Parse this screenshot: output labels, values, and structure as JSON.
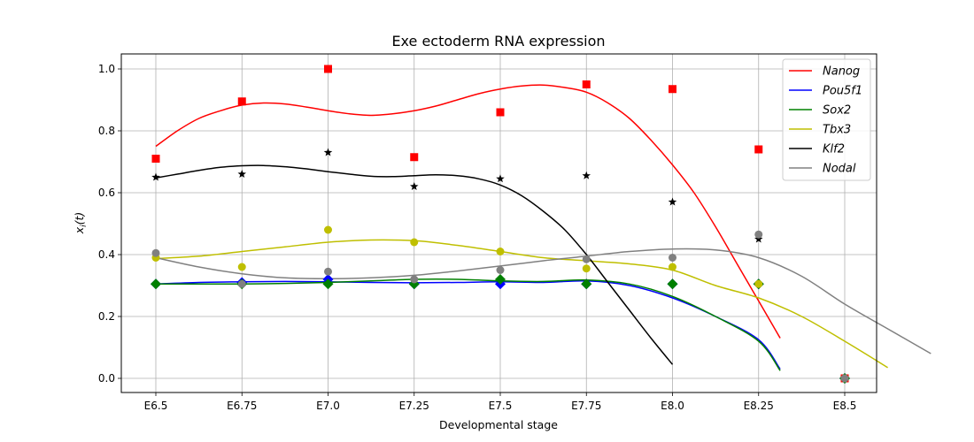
{
  "chart_data": {
    "type": "line",
    "title": "Exe ectoderm RNA expression",
    "xlabel": "Developmental stage",
    "ylabel_main": "x",
    "ylabel_sub": "i",
    "ylabel_tail": "(t)",
    "categories": [
      "E6.5",
      "E6.75",
      "E7.0",
      "E7.25",
      "E7.5",
      "E7.75",
      "E8.0",
      "E8.25",
      "E8.5"
    ],
    "yticks": [
      "0.0",
      "0.2",
      "0.4",
      "0.6",
      "0.8",
      "1.0"
    ],
    "ylim": [
      -0.05,
      1.05
    ],
    "grid": true,
    "legend_position": "top-right",
    "series": [
      {
        "name": "Nanog",
        "color": "#ff0000",
        "marker": "square",
        "points": [
          0.71,
          0.895,
          1.0,
          0.715,
          0.86,
          0.95,
          0.935,
          0.74,
          0.0
        ],
        "fit": [
          [
            0,
            0.75
          ],
          [
            0.25,
            0.8
          ],
          [
            0.5,
            0.84
          ],
          [
            0.75,
            0.865
          ],
          [
            1,
            0.883
          ],
          [
            1.25,
            0.89
          ],
          [
            1.5,
            0.887
          ],
          [
            1.75,
            0.877
          ],
          [
            2,
            0.865
          ],
          [
            2.25,
            0.855
          ],
          [
            2.5,
            0.85
          ],
          [
            2.75,
            0.855
          ],
          [
            3,
            0.865
          ],
          [
            3.25,
            0.88
          ],
          [
            3.5,
            0.9
          ],
          [
            3.75,
            0.92
          ],
          [
            4,
            0.935
          ],
          [
            4.25,
            0.945
          ],
          [
            4.5,
            0.948
          ],
          [
            4.75,
            0.94
          ],
          [
            5,
            0.925
          ],
          [
            5.25,
            0.89
          ],
          [
            5.5,
            0.84
          ],
          [
            5.75,
            0.77
          ],
          [
            6,
            0.69
          ],
          [
            6.25,
            0.6
          ],
          [
            6.5,
            0.49
          ],
          [
            6.75,
            0.37
          ],
          [
            7,
            0.25
          ],
          [
            7.25,
            0.13
          ]
        ]
      },
      {
        "name": "Pou5f1",
        "color": "#0000ff",
        "marker": "diamond",
        "points": [
          0.305,
          0.31,
          0.32,
          0.305,
          0.305,
          0.305,
          0.305,
          0.305,
          0.0
        ],
        "fit": [
          [
            0,
            0.305
          ],
          [
            0.5,
            0.31
          ],
          [
            1,
            0.312
          ],
          [
            1.5,
            0.313
          ],
          [
            2,
            0.312
          ],
          [
            2.5,
            0.31
          ],
          [
            3,
            0.309
          ],
          [
            3.5,
            0.31
          ],
          [
            4,
            0.312
          ],
          [
            4.5,
            0.31
          ],
          [
            5,
            0.315
          ],
          [
            5.5,
            0.3
          ],
          [
            6,
            0.26
          ],
          [
            6.5,
            0.2
          ],
          [
            7,
            0.125
          ],
          [
            7.25,
            0.03
          ]
        ]
      },
      {
        "name": "Sox2",
        "color": "#008000",
        "marker": "diamond",
        "points": [
          0.305,
          0.305,
          0.305,
          0.305,
          0.32,
          0.305,
          0.305,
          0.305,
          0.0
        ],
        "fit": [
          [
            0,
            0.305
          ],
          [
            0.5,
            0.305
          ],
          [
            1,
            0.305
          ],
          [
            1.5,
            0.307
          ],
          [
            2,
            0.31
          ],
          [
            2.5,
            0.315
          ],
          [
            3,
            0.32
          ],
          [
            3.5,
            0.32
          ],
          [
            4,
            0.315
          ],
          [
            4.5,
            0.313
          ],
          [
            5,
            0.318
          ],
          [
            5.5,
            0.305
          ],
          [
            6,
            0.265
          ],
          [
            6.5,
            0.2
          ],
          [
            7,
            0.12
          ],
          [
            7.25,
            0.025
          ]
        ]
      },
      {
        "name": "Tbx3",
        "color": "#bfbf00",
        "marker": "circle",
        "points": [
          0.39,
          0.36,
          0.48,
          0.44,
          0.41,
          0.355,
          0.36,
          0.305,
          0.0
        ],
        "fit": [
          [
            0,
            0.387
          ],
          [
            0.5,
            0.395
          ],
          [
            1,
            0.41
          ],
          [
            1.5,
            0.425
          ],
          [
            2,
            0.44
          ],
          [
            2.5,
            0.447
          ],
          [
            3,
            0.445
          ],
          [
            3.5,
            0.43
          ],
          [
            4,
            0.41
          ],
          [
            4.5,
            0.39
          ],
          [
            5,
            0.38
          ],
          [
            5.5,
            0.37
          ],
          [
            6,
            0.35
          ],
          [
            6.5,
            0.3
          ],
          [
            7,
            0.26
          ],
          [
            7.5,
            0.2
          ],
          [
            8,
            0.12
          ],
          [
            8.5,
            0.035
          ]
        ]
      },
      {
        "name": "Klf2",
        "color": "#000000",
        "marker": "star",
        "points": [
          0.65,
          0.66,
          0.73,
          0.62,
          0.645,
          0.655,
          0.57,
          0.45,
          0.0
        ],
        "fit": [
          [
            0,
            0.648
          ],
          [
            0.25,
            0.66
          ],
          [
            0.5,
            0.672
          ],
          [
            0.75,
            0.682
          ],
          [
            1,
            0.687
          ],
          [
            1.25,
            0.688
          ],
          [
            1.5,
            0.684
          ],
          [
            1.75,
            0.677
          ],
          [
            2,
            0.668
          ],
          [
            2.25,
            0.66
          ],
          [
            2.5,
            0.653
          ],
          [
            2.75,
            0.652
          ],
          [
            3,
            0.655
          ],
          [
            3.25,
            0.658
          ],
          [
            3.5,
            0.655
          ],
          [
            3.75,
            0.645
          ],
          [
            4,
            0.625
          ],
          [
            4.25,
            0.59
          ],
          [
            4.5,
            0.54
          ],
          [
            4.75,
            0.48
          ],
          [
            5,
            0.4
          ],
          [
            5.25,
            0.31
          ],
          [
            5.5,
            0.22
          ],
          [
            5.75,
            0.13
          ],
          [
            6,
            0.045
          ]
        ]
      },
      {
        "name": "Nodal",
        "color": "#808080",
        "marker": "circle",
        "points": [
          0.405,
          0.305,
          0.345,
          0.32,
          0.35,
          0.385,
          0.39,
          0.465,
          0.0
        ],
        "fit": [
          [
            0,
            0.39
          ],
          [
            0.5,
            0.36
          ],
          [
            1,
            0.338
          ],
          [
            1.5,
            0.325
          ],
          [
            2,
            0.322
          ],
          [
            2.5,
            0.325
          ],
          [
            3,
            0.333
          ],
          [
            3.5,
            0.347
          ],
          [
            4,
            0.363
          ],
          [
            4.5,
            0.38
          ],
          [
            5,
            0.395
          ],
          [
            5.5,
            0.41
          ],
          [
            6,
            0.418
          ],
          [
            6.5,
            0.415
          ],
          [
            7,
            0.39
          ],
          [
            7.5,
            0.33
          ],
          [
            8,
            0.24
          ],
          [
            8.5,
            0.16
          ],
          [
            9,
            0.08
          ]
        ]
      }
    ]
  }
}
